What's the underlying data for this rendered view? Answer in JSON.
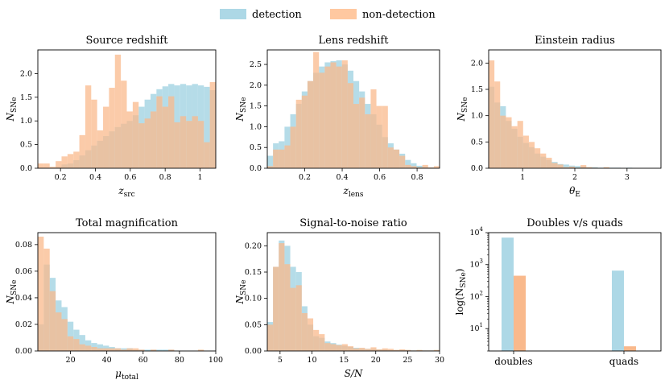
{
  "legend": {
    "placement": "top-center",
    "items": [
      {
        "label": "detection",
        "color": "#add8e6"
      },
      {
        "label": "non-detection",
        "color": "#ffc8a0"
      }
    ]
  },
  "colors": {
    "detection": "#add8e6",
    "non_detection": "#f9b98c"
  },
  "chart_data": [
    {
      "id": "source-redshift",
      "type": "bar",
      "title": "Source redshift",
      "xlabel": "z_src",
      "xlabel_main": "z",
      "xlabel_sub": "src",
      "ylabel": "N_SNe",
      "ylabel_main": "N",
      "ylabel_sub": "SNe",
      "xlim": [
        0.07,
        1.09
      ],
      "ylim": [
        0,
        2.5
      ],
      "xticks": [
        0.2,
        0.4,
        0.6,
        0.8,
        1.0
      ],
      "yticks": [
        0.0,
        0.5,
        1.0,
        1.5,
        2.0
      ],
      "bin_start": 0.07,
      "bin_width": 0.034,
      "series": [
        {
          "name": "detection",
          "values": [
            0.0,
            0.0,
            0.0,
            0.03,
            0.08,
            0.1,
            0.17,
            0.27,
            0.38,
            0.48,
            0.58,
            0.68,
            0.78,
            0.87,
            0.94,
            1.0,
            1.12,
            1.3,
            1.45,
            1.57,
            1.67,
            1.73,
            1.78,
            1.75,
            1.78,
            1.75,
            1.78,
            1.75,
            1.72,
            1.65
          ]
        },
        {
          "name": "non-detection",
          "values": [
            0.1,
            0.1,
            0.03,
            0.15,
            0.25,
            0.3,
            0.35,
            0.7,
            1.75,
            1.45,
            0.8,
            1.3,
            1.7,
            2.4,
            1.85,
            1.2,
            1.4,
            0.95,
            1.05,
            1.2,
            1.52,
            1.3,
            1.52,
            0.97,
            1.1,
            1.0,
            1.1,
            1.0,
            0.55,
            1.82
          ]
        }
      ]
    },
    {
      "id": "lens-redshift",
      "type": "bar",
      "title": "Lens redshift",
      "xlabel": "z_lens",
      "xlabel_main": "z",
      "xlabel_sub": "lens",
      "ylabel": "N_SNe",
      "ylabel_main": "N",
      "ylabel_sub": "SNe",
      "xlim": [
        0.0,
        0.92
      ],
      "ylim": [
        0,
        2.85
      ],
      "xticks": [
        0.2,
        0.4,
        0.6,
        0.8
      ],
      "yticks": [
        0.0,
        0.5,
        1.0,
        1.5,
        2.0,
        2.5
      ],
      "bin_start": 0.0,
      "bin_width": 0.03067,
      "series": [
        {
          "name": "detection",
          "values": [
            0.3,
            0.6,
            0.65,
            1.0,
            1.3,
            1.55,
            1.85,
            2.1,
            2.3,
            2.45,
            2.55,
            2.58,
            2.6,
            2.5,
            2.35,
            2.1,
            1.85,
            1.55,
            1.3,
            1.05,
            0.75,
            0.6,
            0.45,
            0.35,
            0.2,
            0.12,
            0.06,
            0.03,
            0.02,
            0.01
          ]
        },
        {
          "name": "non-detection",
          "values": [
            0.05,
            0.45,
            0.45,
            0.55,
            1.0,
            1.65,
            1.75,
            2.1,
            2.8,
            2.3,
            2.45,
            2.55,
            2.45,
            2.6,
            2.05,
            1.55,
            1.7,
            1.3,
            1.9,
            1.5,
            1.5,
            0.5,
            0.45,
            0.3,
            0.08,
            0.05,
            0.02,
            0.08,
            0.02,
            0.05
          ]
        }
      ]
    },
    {
      "id": "einstein-radius",
      "type": "bar",
      "title": "Einstein radius",
      "xlabel": "θ_E",
      "xlabel_main": "θ",
      "xlabel_sub": "E",
      "ylabel": "N_SNe",
      "ylabel_main": "N",
      "ylabel_sub": "SNe",
      "xlim": [
        0.35,
        3.65
      ],
      "ylim": [
        0,
        2.25
      ],
      "xticks": [
        1,
        2,
        3
      ],
      "yticks": [
        0.0,
        0.5,
        1.0,
        1.5,
        2.0
      ],
      "bin_start": 0.35,
      "bin_width": 0.11,
      "series": [
        {
          "name": "detection",
          "values": [
            1.55,
            1.25,
            1.18,
            0.9,
            0.75,
            0.6,
            0.48,
            0.4,
            0.28,
            0.22,
            0.16,
            0.12,
            0.08,
            0.07,
            0.05,
            0.04,
            0.03,
            0.02,
            0.02,
            0.01,
            0.01,
            0.01,
            0.01,
            0.0,
            0.01,
            0.0,
            0.0,
            0.0,
            0.0,
            0.0
          ]
        },
        {
          "name": "non-detection",
          "values": [
            2.05,
            1.65,
            1.0,
            0.97,
            0.8,
            0.9,
            0.62,
            0.5,
            0.38,
            0.28,
            0.2,
            0.1,
            0.07,
            0.02,
            0.03,
            0.01,
            0.06,
            0.02,
            0.01,
            0.0,
            0.02,
            0.0,
            0.0,
            0.0,
            0.0,
            0.0,
            0.0,
            0.0,
            0.0,
            0.0
          ]
        }
      ]
    },
    {
      "id": "total-magnification",
      "type": "bar",
      "title": "Total magnification",
      "xlabel": "μ_total",
      "xlabel_main": "μ",
      "xlabel_sub": "total",
      "ylabel": "N_SNe",
      "ylabel_main": "N",
      "ylabel_sub": "SNe",
      "xlim": [
        2,
        100
      ],
      "ylim": [
        0,
        0.089
      ],
      "xticks": [
        20,
        40,
        60,
        80,
        100
      ],
      "yticks": [
        0.0,
        0.02,
        0.04,
        0.06,
        0.08
      ],
      "bin_start": 2,
      "bin_width": 3.267,
      "series": [
        {
          "name": "detection",
          "values": [
            0.02,
            0.065,
            0.055,
            0.038,
            0.033,
            0.022,
            0.016,
            0.012,
            0.008,
            0.006,
            0.005,
            0.004,
            0.003,
            0.002,
            0.002,
            0.002,
            0.001,
            0.001,
            0.001,
            0.001,
            0.001,
            0.001,
            0.001,
            0.0,
            0.0,
            0.0,
            0.0,
            0.0,
            0.0,
            0.0
          ]
        },
        {
          "name": "non-detection",
          "values": [
            0.086,
            0.077,
            0.045,
            0.029,
            0.024,
            0.011,
            0.009,
            0.005,
            0.004,
            0.003,
            0.002,
            0.002,
            0.002,
            0.002,
            0.001,
            0.002,
            0.002,
            0.001,
            0.0,
            0.001,
            0.0,
            0.0,
            0.001,
            0.0,
            0.0,
            0.0,
            0.0,
            0.001,
            0.0,
            0.0
          ]
        }
      ]
    },
    {
      "id": "signal-to-noise",
      "type": "bar",
      "title": "Signal-to-noise ratio",
      "xlabel": "S/N",
      "xlabel_main": "S/N",
      "xlabel_sub": "",
      "ylabel": "N_SNe",
      "ylabel_main": "N",
      "ylabel_sub": "SNe",
      "xlim": [
        3,
        30
      ],
      "ylim": [
        0,
        0.225
      ],
      "xticks": [
        5,
        10,
        15,
        20,
        25,
        30
      ],
      "yticks": [
        0.0,
        0.05,
        0.1,
        0.15,
        0.2
      ],
      "bin_start": 3,
      "bin_width": 0.9,
      "series": [
        {
          "name": "detection",
          "values": [
            0.055,
            0.16,
            0.21,
            0.2,
            0.16,
            0.15,
            0.085,
            0.05,
            0.028,
            0.025,
            0.018,
            0.015,
            0.012,
            0.01,
            0.008,
            0.006,
            0.005,
            0.004,
            0.004,
            0.003,
            0.003,
            0.002,
            0.002,
            0.002,
            0.002,
            0.001,
            0.001,
            0.001,
            0.001,
            0.001
          ]
        },
        {
          "name": "non-detection",
          "values": [
            0.05,
            0.16,
            0.205,
            0.165,
            0.12,
            0.125,
            0.072,
            0.062,
            0.04,
            0.032,
            0.015,
            0.013,
            0.011,
            0.013,
            0.009,
            0.005,
            0.006,
            0.004,
            0.007,
            0.003,
            0.005,
            0.004,
            0.002,
            0.003,
            0.002,
            0.001,
            0.002,
            0.001,
            0.001,
            0.002
          ]
        }
      ]
    },
    {
      "id": "doubles-vs-quads",
      "type": "bar",
      "title": "Doubles v/s quads",
      "xlabel": "",
      "ylabel": "log(N_SNe)",
      "ylabel_main": "log(N",
      "ylabel_sub": "SNe",
      "ylabel_tail": ")",
      "yscale": "log",
      "ylim": [
        2,
        10000
      ],
      "yticks": [
        10,
        100,
        1000,
        10000
      ],
      "ytick_labels": [
        {
          "base": "10",
          "exp": "1"
        },
        {
          "base": "10",
          "exp": "2"
        },
        {
          "base": "10",
          "exp": "3"
        },
        {
          "base": "10",
          "exp": "4"
        }
      ],
      "categories": [
        "doubles",
        "quads"
      ],
      "series": [
        {
          "name": "detection",
          "values": [
            7000,
            650
          ]
        },
        {
          "name": "non-detection",
          "values": [
            450,
            2.8
          ]
        }
      ]
    }
  ]
}
